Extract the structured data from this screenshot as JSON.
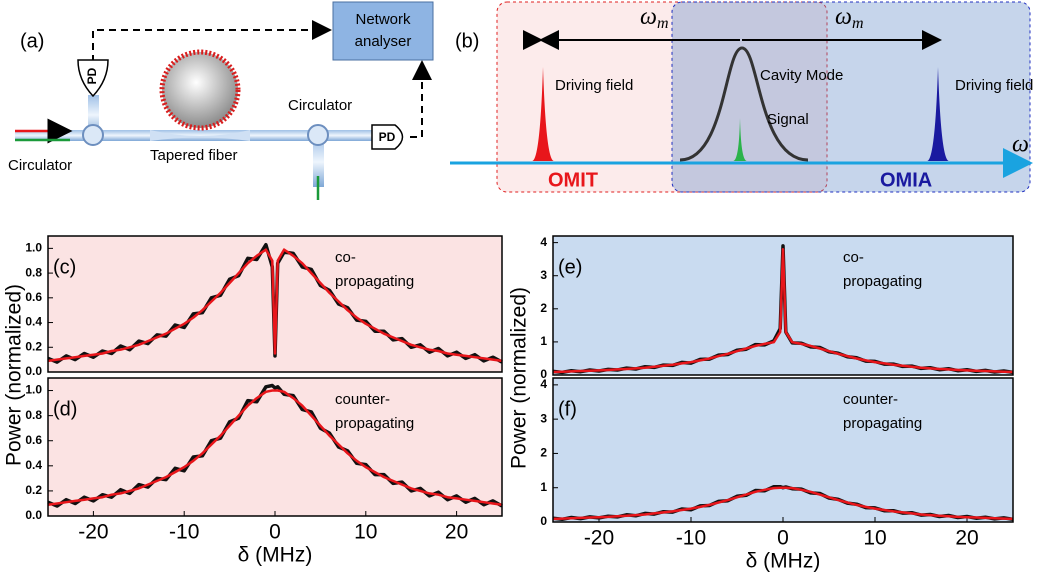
{
  "diagram_a": {
    "label": "(a)",
    "network_analyser": [
      "Network",
      "analyser"
    ],
    "pd": [
      "PD",
      "PD"
    ],
    "circulator": [
      "Circulator",
      "Circulator"
    ],
    "fiber": "Tapered fiber"
  },
  "diagram_b": {
    "label": "(b)",
    "omega_m": [
      {
        "symbol": "ω",
        "sub": "m"
      },
      {
        "symbol": "ω",
        "sub": "m"
      }
    ],
    "driving_field": [
      "Driving field",
      "Driving field"
    ],
    "cavity_mode": "Cavity Mode",
    "signal": "Signal",
    "omega": "ω",
    "omit": "OMIT",
    "omia": "OMIA"
  },
  "chart_data": [
    {
      "type": "line",
      "panel_label": "(c)",
      "annotation": [
        "co-",
        "propagating"
      ],
      "ylabel": "Power (normalized)",
      "background": "#fbe3e3",
      "x": [
        -25,
        -24,
        -23,
        -22,
        -21,
        -20,
        -19,
        -18,
        -17,
        -16,
        -15,
        -14,
        -13,
        -12,
        -11,
        -10,
        -9,
        -8,
        -7,
        -6,
        -5,
        -4,
        -3,
        -2,
        -1,
        -0.3,
        0,
        0.3,
        1,
        2,
        3,
        4,
        5,
        6,
        7,
        8,
        9,
        10,
        11,
        12,
        13,
        14,
        15,
        16,
        17,
        18,
        19,
        20,
        21,
        22,
        23,
        24,
        25
      ],
      "series": [
        {
          "color": "#111111",
          "values": [
            0.11,
            0.08,
            0.13,
            0.1,
            0.15,
            0.12,
            0.17,
            0.15,
            0.21,
            0.18,
            0.25,
            0.23,
            0.3,
            0.29,
            0.38,
            0.36,
            0.47,
            0.48,
            0.6,
            0.62,
            0.75,
            0.78,
            0.92,
            0.91,
            1.03,
            0.85,
            0.13,
            0.88,
            0.97,
            0.96,
            0.85,
            0.83,
            0.7,
            0.66,
            0.55,
            0.52,
            0.42,
            0.41,
            0.33,
            0.33,
            0.26,
            0.27,
            0.2,
            0.22,
            0.16,
            0.19,
            0.13,
            0.16,
            0.11,
            0.14,
            0.09,
            0.12,
            0.08
          ]
        },
        {
          "color": "#e8161b",
          "values": [
            0.09,
            0.1,
            0.11,
            0.12,
            0.13,
            0.14,
            0.15,
            0.17,
            0.18,
            0.2,
            0.22,
            0.25,
            0.28,
            0.31,
            0.35,
            0.39,
            0.44,
            0.5,
            0.57,
            0.64,
            0.72,
            0.8,
            0.88,
            0.94,
            0.99,
            0.9,
            0.15,
            0.9,
            0.99,
            0.94,
            0.88,
            0.8,
            0.72,
            0.64,
            0.57,
            0.5,
            0.44,
            0.39,
            0.35,
            0.31,
            0.28,
            0.25,
            0.22,
            0.2,
            0.18,
            0.17,
            0.15,
            0.14,
            0.13,
            0.12,
            0.11,
            0.1,
            0.09
          ]
        }
      ],
      "xlim": [
        -25,
        25
      ],
      "ylim": [
        0,
        1.1
      ],
      "yticks": [
        {
          "value": 0,
          "label": "0.0"
        },
        0.2,
        0.4,
        0.6,
        0.8,
        {
          "value": 1,
          "label": "1.0"
        }
      ]
    },
    {
      "type": "line",
      "panel_label": "(d)",
      "annotation": [
        "counter-",
        "propagating"
      ],
      "xlabel": "δ (MHz)",
      "background": "#fbe3e3",
      "x": [
        -25,
        -24,
        -23,
        -22,
        -21,
        -20,
        -19,
        -18,
        -17,
        -16,
        -15,
        -14,
        -13,
        -12,
        -11,
        -10,
        -9,
        -8,
        -7,
        -6,
        -5,
        -4,
        -3,
        -2,
        -1,
        -0.3,
        0,
        0.3,
        1,
        2,
        3,
        4,
        5,
        6,
        7,
        8,
        9,
        10,
        11,
        12,
        13,
        14,
        15,
        16,
        17,
        18,
        19,
        20,
        21,
        22,
        23,
        24,
        25
      ],
      "series": [
        {
          "color": "#111111",
          "values": [
            0.11,
            0.08,
            0.13,
            0.1,
            0.15,
            0.12,
            0.17,
            0.15,
            0.21,
            0.18,
            0.25,
            0.23,
            0.3,
            0.29,
            0.38,
            0.36,
            0.47,
            0.48,
            0.6,
            0.62,
            0.75,
            0.78,
            0.92,
            0.91,
            1.03,
            1.04,
            1.02,
            1.03,
            0.97,
            0.96,
            0.85,
            0.83,
            0.7,
            0.66,
            0.55,
            0.52,
            0.42,
            0.41,
            0.33,
            0.33,
            0.26,
            0.27,
            0.2,
            0.22,
            0.16,
            0.19,
            0.13,
            0.16,
            0.11,
            0.14,
            0.09,
            0.12,
            0.08
          ]
        },
        {
          "color": "#e8161b",
          "values": [
            0.09,
            0.1,
            0.11,
            0.12,
            0.13,
            0.14,
            0.15,
            0.17,
            0.18,
            0.2,
            0.22,
            0.25,
            0.28,
            0.31,
            0.35,
            0.39,
            0.44,
            0.5,
            0.57,
            0.64,
            0.72,
            0.8,
            0.88,
            0.94,
            0.99,
            1.0,
            1.0,
            1.0,
            0.99,
            0.94,
            0.88,
            0.8,
            0.72,
            0.64,
            0.57,
            0.5,
            0.44,
            0.39,
            0.35,
            0.31,
            0.28,
            0.25,
            0.22,
            0.2,
            0.18,
            0.17,
            0.15,
            0.14,
            0.13,
            0.12,
            0.11,
            0.1,
            0.09
          ]
        }
      ],
      "xlim": [
        -25,
        25
      ],
      "xticks": [
        -20,
        -10,
        0,
        10,
        20
      ],
      "ylim": [
        0,
        1.1
      ],
      "yticks": [
        {
          "value": 0,
          "label": "0.0"
        },
        0.2,
        0.4,
        0.6,
        0.8,
        {
          "value": 1,
          "label": "1.0"
        }
      ]
    },
    {
      "type": "line",
      "panel_label": "(e)",
      "annotation": [
        "co-",
        "propagating"
      ],
      "ylabel": "Power (normalized)",
      "background": "#c9dbf0",
      "x": [
        -25,
        -24,
        -23,
        -22,
        -21,
        -20,
        -19,
        -18,
        -17,
        -16,
        -15,
        -14,
        -13,
        -12,
        -11,
        -10,
        -9,
        -8,
        -7,
        -6,
        -5,
        -4,
        -3,
        -2,
        -1,
        -0.3,
        0,
        0.3,
        1,
        2,
        3,
        4,
        5,
        6,
        7,
        8,
        9,
        10,
        11,
        12,
        13,
        14,
        15,
        16,
        17,
        18,
        19,
        20,
        21,
        22,
        23,
        24,
        25
      ],
      "series": [
        {
          "color": "#111111",
          "values": [
            0.11,
            0.08,
            0.13,
            0.1,
            0.15,
            0.12,
            0.17,
            0.15,
            0.21,
            0.18,
            0.25,
            0.23,
            0.3,
            0.29,
            0.38,
            0.36,
            0.47,
            0.48,
            0.6,
            0.62,
            0.75,
            0.78,
            0.92,
            0.91,
            1.03,
            1.4,
            3.9,
            1.3,
            0.97,
            0.96,
            0.85,
            0.83,
            0.7,
            0.66,
            0.55,
            0.52,
            0.42,
            0.41,
            0.33,
            0.33,
            0.26,
            0.27,
            0.2,
            0.22,
            0.16,
            0.19,
            0.13,
            0.16,
            0.11,
            0.14,
            0.09,
            0.12,
            0.08
          ]
        },
        {
          "color": "#e8161b",
          "values": [
            0.09,
            0.1,
            0.11,
            0.12,
            0.13,
            0.14,
            0.15,
            0.17,
            0.18,
            0.2,
            0.22,
            0.25,
            0.28,
            0.31,
            0.35,
            0.39,
            0.44,
            0.5,
            0.57,
            0.64,
            0.72,
            0.8,
            0.88,
            0.94,
            0.99,
            1.3,
            3.8,
            1.3,
            0.99,
            0.94,
            0.88,
            0.8,
            0.72,
            0.64,
            0.57,
            0.5,
            0.44,
            0.39,
            0.35,
            0.31,
            0.28,
            0.25,
            0.22,
            0.2,
            0.18,
            0.17,
            0.15,
            0.14,
            0.13,
            0.12,
            0.11,
            0.1,
            0.09
          ]
        }
      ],
      "xlim": [
        -25,
        25
      ],
      "ylim": [
        0,
        4.2
      ],
      "yticks": [
        0,
        1,
        2,
        3,
        4
      ]
    },
    {
      "type": "line",
      "panel_label": "(f)",
      "annotation": [
        "counter-",
        "propagating"
      ],
      "xlabel": "δ (MHz)",
      "background": "#c9dbf0",
      "x": [
        -25,
        -24,
        -23,
        -22,
        -21,
        -20,
        -19,
        -18,
        -17,
        -16,
        -15,
        -14,
        -13,
        -12,
        -11,
        -10,
        -9,
        -8,
        -7,
        -6,
        -5,
        -4,
        -3,
        -2,
        -1,
        -0.3,
        0,
        0.3,
        1,
        2,
        3,
        4,
        5,
        6,
        7,
        8,
        9,
        10,
        11,
        12,
        13,
        14,
        15,
        16,
        17,
        18,
        19,
        20,
        21,
        22,
        23,
        24,
        25
      ],
      "series": [
        {
          "color": "#111111",
          "values": [
            0.11,
            0.08,
            0.13,
            0.1,
            0.15,
            0.12,
            0.17,
            0.15,
            0.21,
            0.18,
            0.25,
            0.23,
            0.3,
            0.29,
            0.38,
            0.36,
            0.47,
            0.48,
            0.6,
            0.62,
            0.75,
            0.78,
            0.92,
            0.91,
            1.03,
            1.03,
            1.0,
            1.02,
            0.97,
            0.96,
            0.85,
            0.83,
            0.7,
            0.66,
            0.55,
            0.52,
            0.42,
            0.41,
            0.33,
            0.33,
            0.26,
            0.27,
            0.2,
            0.22,
            0.16,
            0.19,
            0.13,
            0.16,
            0.11,
            0.14,
            0.09,
            0.12,
            0.08
          ]
        },
        {
          "color": "#e8161b",
          "values": [
            0.09,
            0.1,
            0.11,
            0.12,
            0.13,
            0.14,
            0.15,
            0.17,
            0.18,
            0.2,
            0.22,
            0.25,
            0.28,
            0.31,
            0.35,
            0.39,
            0.44,
            0.5,
            0.57,
            0.64,
            0.72,
            0.8,
            0.88,
            0.94,
            0.99,
            1.0,
            1.0,
            1.0,
            0.99,
            0.94,
            0.88,
            0.8,
            0.72,
            0.64,
            0.57,
            0.5,
            0.44,
            0.39,
            0.35,
            0.31,
            0.28,
            0.25,
            0.22,
            0.2,
            0.18,
            0.17,
            0.15,
            0.14,
            0.13,
            0.12,
            0.11,
            0.1,
            0.09
          ]
        }
      ],
      "xlim": [
        -25,
        25
      ],
      "xticks": [
        -20,
        -10,
        0,
        10,
        20
      ],
      "ylim": [
        0,
        4.2
      ],
      "yticks": [
        0,
        1,
        2,
        3,
        4
      ]
    }
  ]
}
